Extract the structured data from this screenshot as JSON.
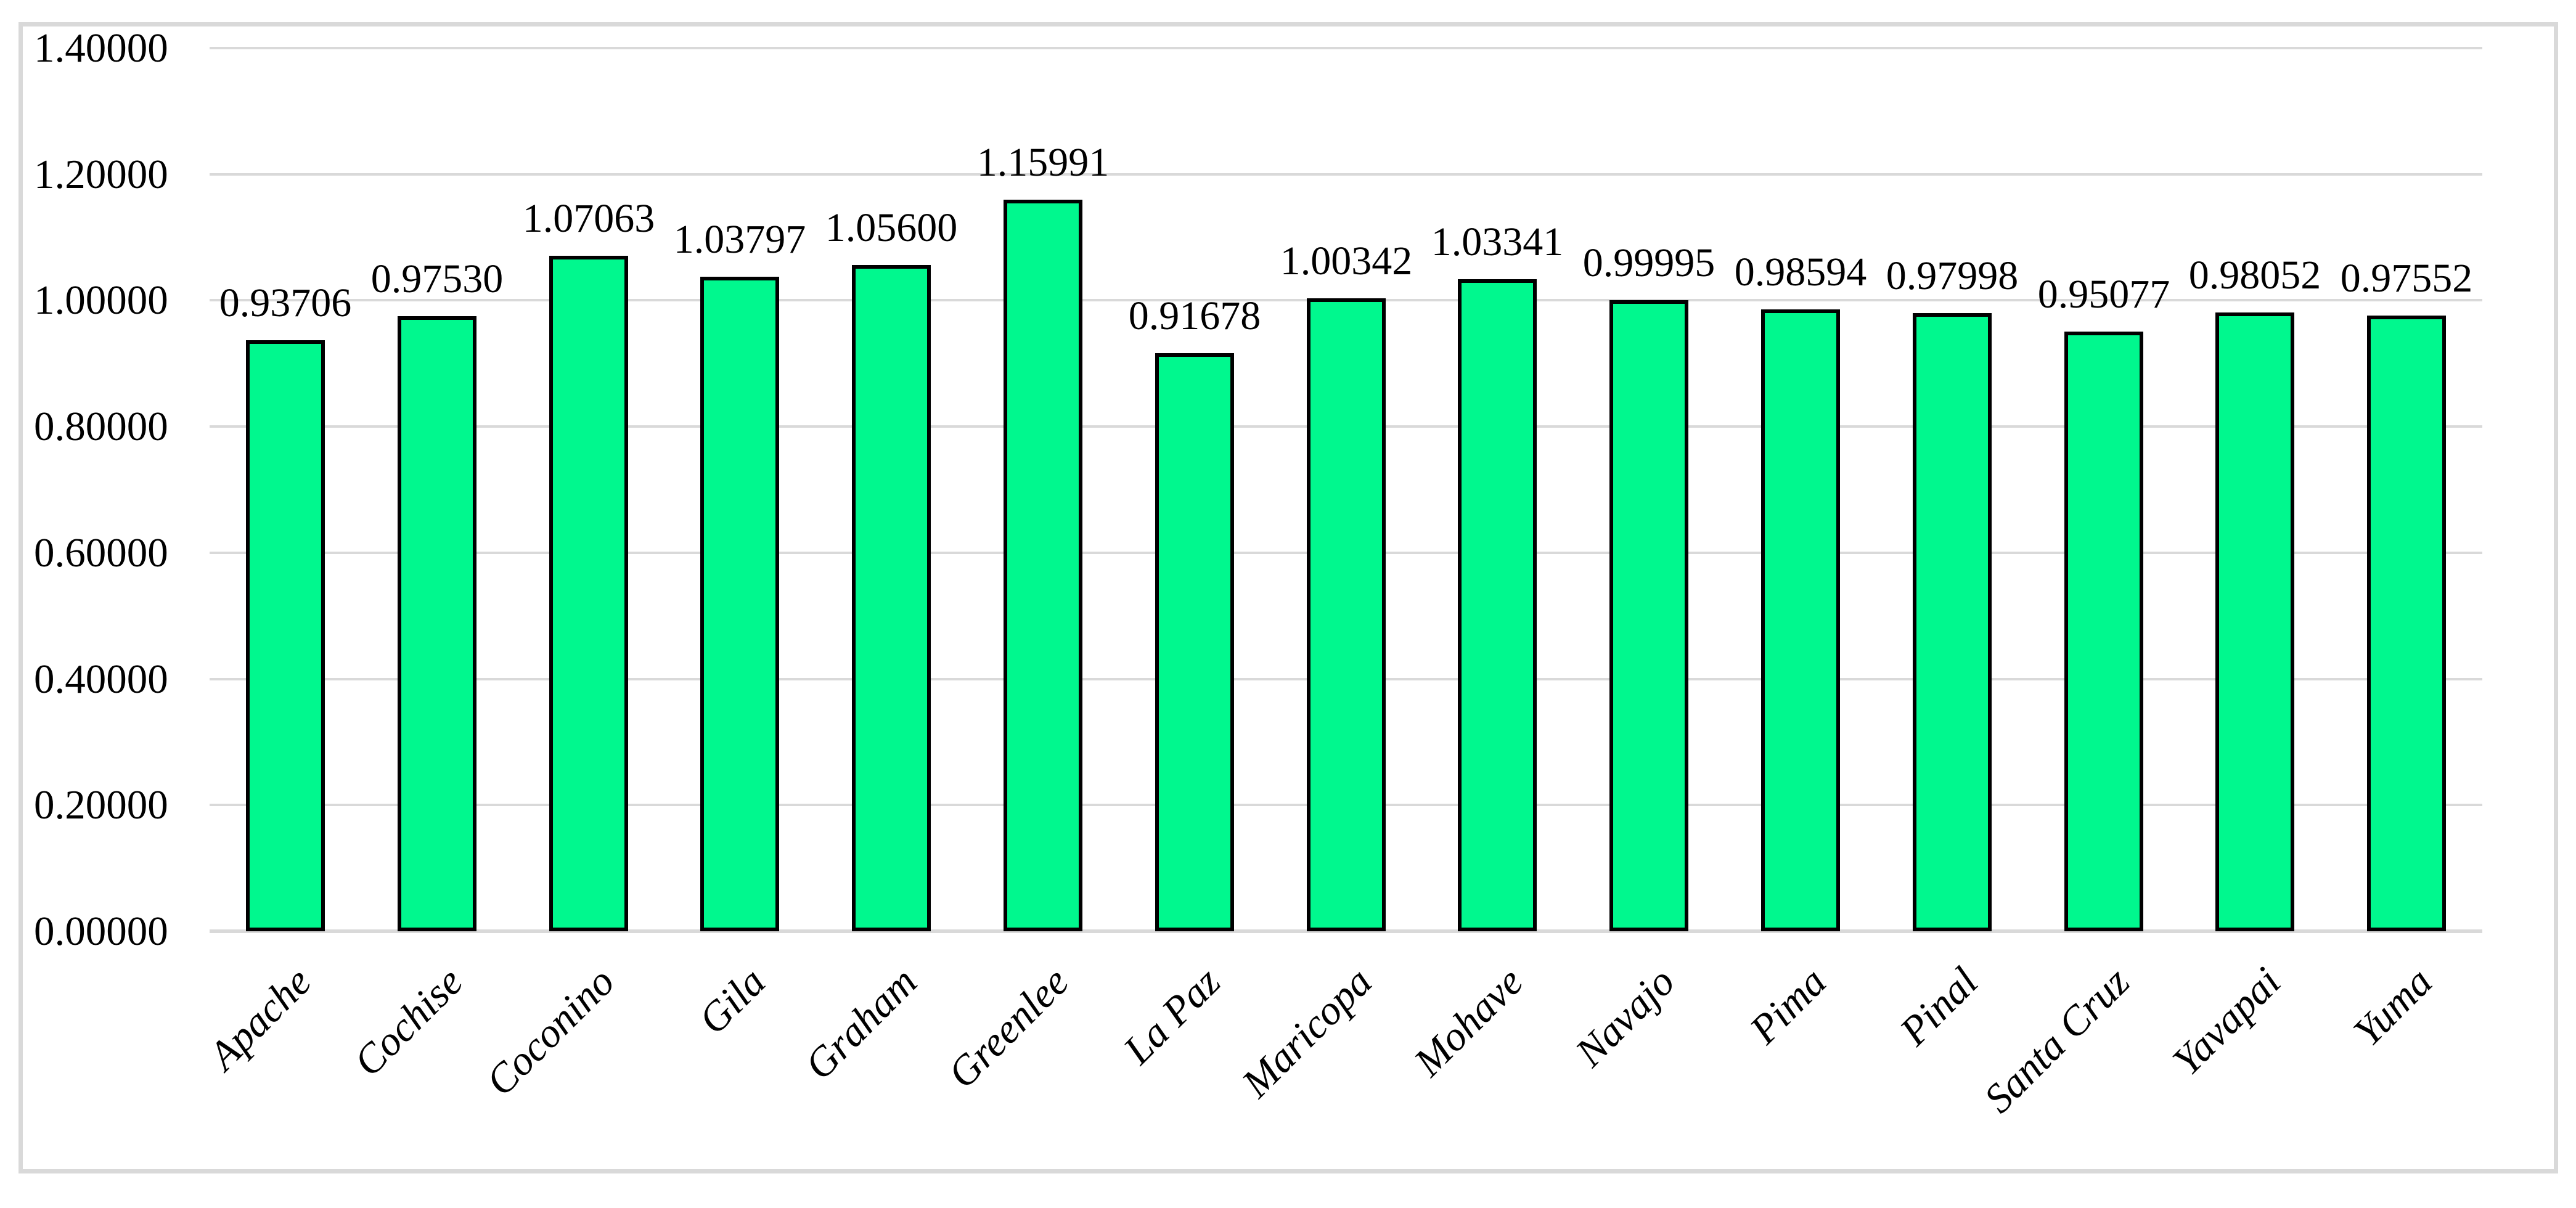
{
  "chart_data": {
    "type": "bar",
    "categories": [
      "Apache",
      "Cochise",
      "Coconino",
      "Gila",
      "Graham",
      "Greenlee",
      "La Paz",
      "Maricopa",
      "Mohave",
      "Navajo",
      "Pima",
      "Pinal",
      "Santa Cruz",
      "Yavapai",
      "Yuma"
    ],
    "values": [
      0.93706,
      0.9753,
      1.07063,
      1.03797,
      1.056,
      1.15991,
      0.91678,
      1.00342,
      1.03341,
      0.99995,
      0.98594,
      0.97998,
      0.95077,
      0.98052,
      0.97552
    ],
    "data_labels": [
      "0.93706",
      "0.97530",
      "1.07063",
      "1.03797",
      "1.05600",
      "1.15991",
      "0.91678",
      "1.00342",
      "1.03341",
      "0.99995",
      "0.98594",
      "0.97998",
      "0.95077",
      "0.98052",
      "0.97552"
    ],
    "title": "",
    "xlabel": "",
    "ylabel": "",
    "ylim": [
      0,
      1.4
    ],
    "ytick_labels": [
      "1.40000",
      "1.20000",
      "1.00000",
      "0.80000",
      "0.60000",
      "0.40000",
      "0.20000",
      "0.00000"
    ],
    "ytick_values": [
      1.4,
      1.2,
      1.0,
      0.8,
      0.6,
      0.4,
      0.2,
      0.0
    ],
    "grid": true,
    "legend": false,
    "colors": {
      "bar_fill": "#00f88e",
      "bar_border": "#000000",
      "gridline": "#d9d9d9",
      "frame_border": "#d9d9d9",
      "text": "#000000",
      "background": "#ffffff"
    }
  }
}
